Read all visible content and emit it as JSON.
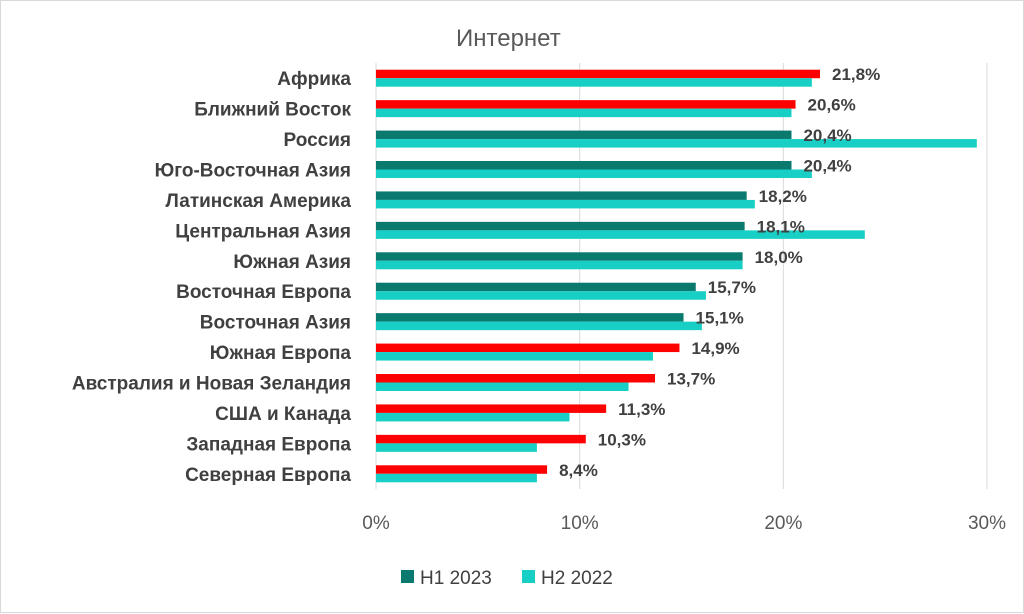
{
  "chart_data": {
    "type": "bar",
    "orientation": "horizontal",
    "title": "Интернет",
    "categories": [
      "Африка",
      "Ближний Восток",
      "Россия",
      "Юго-Восточная Азия",
      "Латинская Америка",
      "Центральная Азия",
      "Южная Азия",
      "Восточная Европа",
      "Восточная Азия",
      "Южная Европа",
      "Австралия  и Новая Зеландия",
      "США и Канада",
      "Западная Европа",
      "Северная Европа"
    ],
    "series": [
      {
        "name": "H1 2023",
        "color": "#0a7a6e",
        "values": [
          21.8,
          20.6,
          20.4,
          20.4,
          18.2,
          18.1,
          18.0,
          15.7,
          15.1,
          14.9,
          13.7,
          11.3,
          10.3,
          8.4
        ],
        "labels": [
          "21,8%",
          "20,6%",
          "20,4%",
          "20,4%",
          "18,2%",
          "18,1%",
          "18,0%",
          "15,7%",
          "15,1%",
          "14,9%",
          "13,7%",
          "11,3%",
          "10,3%",
          "8,4%"
        ]
      },
      {
        "name": "H2 2022",
        "color": "#17cfc4",
        "values": [
          21.4,
          20.4,
          29.5,
          21.4,
          18.6,
          24.0,
          18.0,
          16.2,
          16.0,
          13.6,
          12.4,
          9.5,
          7.9,
          7.9
        ]
      }
    ],
    "highlight_color": "#ff0000",
    "highlighted_categories": [
      "Африка",
      "Ближний Восток",
      "Южная Европа",
      "Австралия  и Новая Зеландия",
      "США и Канада",
      "Западная Европа",
      "Северная Европа"
    ],
    "xlim": [
      0,
      30
    ],
    "xticks": [
      0,
      10,
      20,
      30
    ],
    "xtick_labels": [
      "0%",
      "10%",
      "20%",
      "30%"
    ],
    "grid": "vertical",
    "legend_position": "bottom"
  }
}
